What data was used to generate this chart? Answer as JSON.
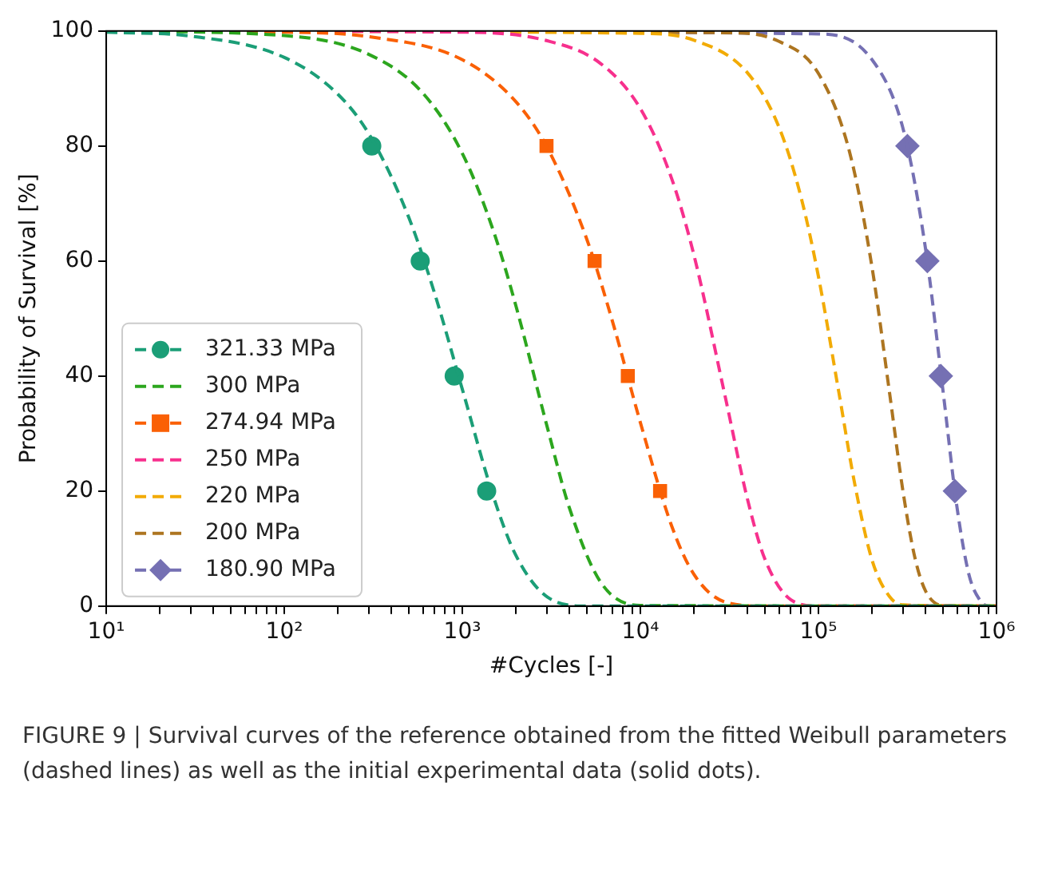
{
  "chart_data": {
    "type": "line",
    "xlabel": "#Cycles [-]",
    "ylabel": "Probability of Survival [%]",
    "log": "x",
    "xlim": [
      10,
      1000000
    ],
    "ylim": [
      0,
      100
    ],
    "xticks": [
      {
        "value": 10,
        "label": "10¹"
      },
      {
        "value": 20,
        "label": null
      },
      {
        "value": 30,
        "label": null
      },
      {
        "value": 40,
        "label": null
      },
      {
        "value": 50,
        "label": null
      },
      {
        "value": 60,
        "label": null
      },
      {
        "value": 70,
        "label": null
      },
      {
        "value": 80,
        "label": null
      },
      {
        "value": 90,
        "label": null
      },
      {
        "value": 100,
        "label": "10²"
      },
      {
        "value": 200,
        "label": null
      },
      {
        "value": 300,
        "label": null
      },
      {
        "value": 400,
        "label": null
      },
      {
        "value": 500,
        "label": null
      },
      {
        "value": 600,
        "label": null
      },
      {
        "value": 700,
        "label": null
      },
      {
        "value": 800,
        "label": null
      },
      {
        "value": 900,
        "label": null
      },
      {
        "value": 1000,
        "label": "10³"
      },
      {
        "value": 2000,
        "label": null
      },
      {
        "value": 3000,
        "label": null
      },
      {
        "value": 4000,
        "label": null
      },
      {
        "value": 5000,
        "label": null
      },
      {
        "value": 6000,
        "label": null
      },
      {
        "value": 7000,
        "label": null
      },
      {
        "value": 8000,
        "label": null
      },
      {
        "value": 9000,
        "label": null
      },
      {
        "value": 10000,
        "label": "10⁴"
      },
      {
        "value": 20000,
        "label": null
      },
      {
        "value": 30000,
        "label": null
      },
      {
        "value": 40000,
        "label": null
      },
      {
        "value": 50000,
        "label": null
      },
      {
        "value": 60000,
        "label": null
      },
      {
        "value": 70000,
        "label": null
      },
      {
        "value": 80000,
        "label": null
      },
      {
        "value": 90000,
        "label": null
      },
      {
        "value": 100000,
        "label": "10⁵"
      },
      {
        "value": 200000,
        "label": null
      },
      {
        "value": 300000,
        "label": null
      },
      {
        "value": 400000,
        "label": null
      },
      {
        "value": 500000,
        "label": null
      },
      {
        "value": 600000,
        "label": null
      },
      {
        "value": 700000,
        "label": null
      },
      {
        "value": 800000,
        "label": null
      },
      {
        "value": 900000,
        "label": null
      },
      {
        "value": 1000000,
        "label": "10⁶"
      }
    ],
    "yticks": [
      0,
      20,
      40,
      60,
      80,
      100
    ],
    "grid": false,
    "legend": "bottom left",
    "series": [
      {
        "name": "321.33 MPa",
        "type": "line",
        "line_style": "dashed",
        "color": "#1b9e77",
        "x": [
          10,
          30,
          100,
          200,
          300,
          500,
          700,
          1000,
          1500,
          2000,
          3000,
          5000,
          1000000
        ],
        "values": [
          99.8,
          99.1,
          95.4,
          89.0,
          82.0,
          67.6,
          54.3,
          37.7,
          18.9,
          8.8,
          1.6,
          0,
          0
        ]
      },
      {
        "type": "scatter",
        "marker": "circle",
        "color": "#1b9e77",
        "x": [
          310,
          580,
          900,
          1370
        ],
        "values": [
          80,
          60,
          40,
          20
        ]
      },
      {
        "name": "300 MPa",
        "type": "line",
        "line_style": "dashed",
        "color": "#2ca61e",
        "x": [
          10,
          100,
          300,
          600,
          1000,
          1500,
          2000,
          3000,
          4000,
          6000,
          10000,
          1000000
        ],
        "values": [
          100,
          99.2,
          95.9,
          89.2,
          78.7,
          65.1,
          52.2,
          31.1,
          17.0,
          4.1,
          0.1,
          0
        ]
      },
      {
        "name": "274.94 MPa",
        "type": "line",
        "line_style": "dashed",
        "color": "#fa6005",
        "x": [
          10,
          100,
          300,
          1000,
          2000,
          3000,
          5000,
          7000,
          10000,
          15000,
          20000,
          30000,
          50000,
          1000000
        ],
        "values": [
          100,
          99.8,
          99.0,
          95.0,
          87.7,
          79.7,
          63.8,
          49.3,
          31.9,
          13.9,
          5.5,
          0.7,
          0,
          0
        ]
      },
      {
        "type": "scatter",
        "marker": "square",
        "color": "#fa6005",
        "x": [
          2970,
          5530,
          8500,
          12900
        ],
        "values": [
          80,
          60,
          40,
          20
        ]
      },
      {
        "name": "250 MPa",
        "type": "line",
        "line_style": "dashed",
        "color": "#f7308d",
        "x": [
          10,
          1000,
          3000,
          6000,
          10000,
          15000,
          20000,
          30000,
          40000,
          50000,
          70000,
          100000,
          1000000
        ],
        "values": [
          100,
          99.8,
          98.3,
          94.3,
          86.5,
          74.3,
          61.0,
          36.3,
          18.5,
          8.2,
          1.1,
          0,
          0
        ]
      },
      {
        "name": "220 MPa",
        "type": "line",
        "line_style": "dashed",
        "color": "#f2ab05",
        "x": [
          10,
          10000,
          20000,
          40000,
          60000,
          80000,
          100000,
          130000,
          160000,
          200000,
          250000,
          300000,
          1000000
        ],
        "values": [
          100,
          99.6,
          98.4,
          92.7,
          83.3,
          71.0,
          57.3,
          37.3,
          21.2,
          8.0,
          1.7,
          0.2,
          0
        ]
      },
      {
        "name": "200 MPa",
        "type": "line",
        "line_style": "dashed",
        "color": "#ad7520",
        "x": [
          10,
          30000,
          60000,
          100000,
          150000,
          200000,
          250000,
          300000,
          350000,
          400000,
          500000,
          1000000
        ],
        "values": [
          100,
          99.7,
          98.2,
          92.6,
          78.8,
          58.9,
          37.4,
          19.5,
          8.1,
          2.6,
          0.1,
          0
        ]
      },
      {
        "name": "180.90 MPa",
        "type": "line",
        "line_style": "dashed",
        "color": "#7570b3",
        "x": [
          10,
          100000,
          200000,
          300000,
          400000,
          500000,
          600000,
          700000,
          800000,
          900000,
          1000000
        ],
        "values": [
          100,
          99.5,
          95.0,
          82.8,
          62.0,
          37.6,
          17.2,
          5.5,
          1.2,
          0,
          0
        ]
      },
      {
        "type": "scatter",
        "marker": "diamond",
        "color": "#7570b3",
        "x": [
          316000,
          409000,
          487000,
          584000
        ],
        "values": [
          80,
          60,
          40,
          20
        ]
      }
    ],
    "annotations": [
      "FIGURE 9 | Survival curves of the reference obtained from the fitted Weibull parameters (dashed lines) as well as the initial experimental data (solid dots)."
    ]
  }
}
